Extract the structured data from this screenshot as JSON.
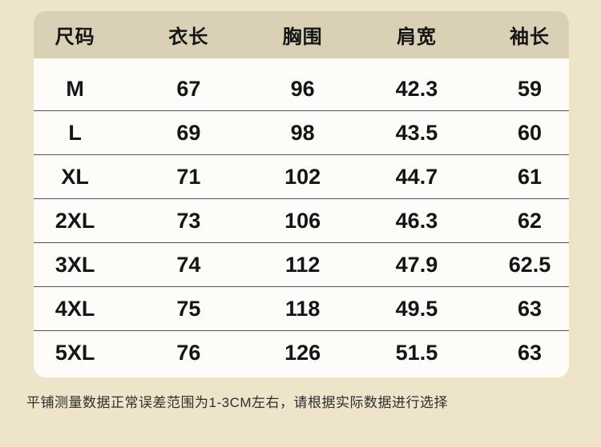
{
  "colors": {
    "page-bg": "#eee4c9",
    "header-bg": "#d9d0b5",
    "card-bg": "#fdfcf8",
    "divider": "#525252",
    "text": "#151515",
    "note-text": "#2e2e2e"
  },
  "chart_data": {
    "type": "table",
    "columns": [
      "尺码",
      "衣长",
      "胸围",
      "肩宽",
      "袖长"
    ],
    "rows": [
      [
        "M",
        "67",
        "96",
        "42.3",
        "59"
      ],
      [
        "L",
        "69",
        "98",
        "43.5",
        "60"
      ],
      [
        "XL",
        "71",
        "102",
        "44.7",
        "61"
      ],
      [
        "2XL",
        "73",
        "106",
        "46.3",
        "62"
      ],
      [
        "3XL",
        "74",
        "112",
        "47.9",
        "62.5"
      ],
      [
        "4XL",
        "75",
        "118",
        "49.5",
        "63"
      ],
      [
        "5XL",
        "76",
        "126",
        "51.5",
        "63"
      ]
    ],
    "units_note": "平铺测量数据正常误差范围为1-3CM左右，请根据实际数据进行选择"
  },
  "footer": {
    "note": "平铺测量数据正常误差范围为1-3CM左右，请根据实际数据进行选择"
  }
}
